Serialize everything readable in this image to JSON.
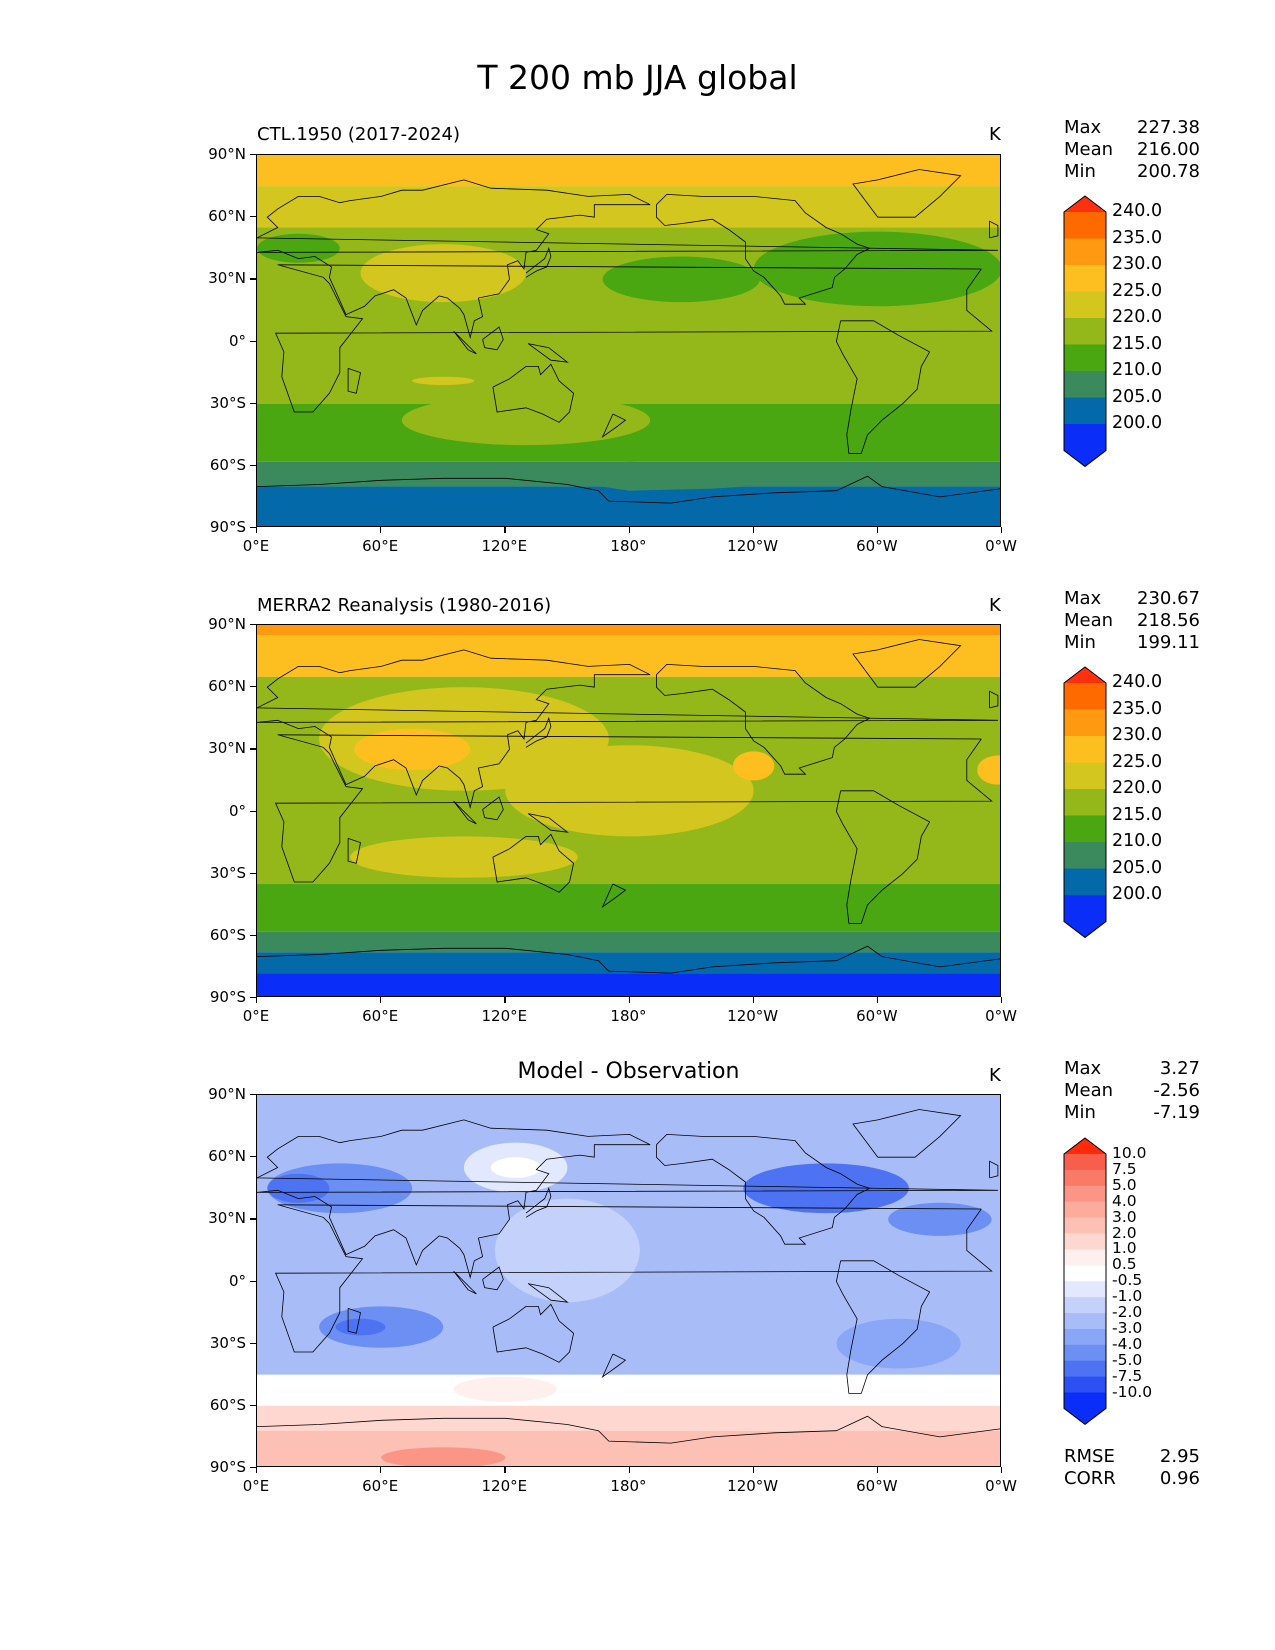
{
  "page_title": "T 200 mb JJA global",
  "axes": {
    "y_ticks": [
      "90°N",
      "60°N",
      "30°N",
      "0°",
      "30°S",
      "60°S",
      "90°S"
    ],
    "x_ticks": [
      "0°E",
      "60°E",
      "120°E",
      "180°",
      "120°W",
      "60°W",
      "0°W"
    ]
  },
  "panels": [
    {
      "title": "CTL.1950 (2017-2024)",
      "units": "K",
      "stats": [
        {
          "label": "Max",
          "value": "227.38"
        },
        {
          "label": "Mean",
          "value": "216.00"
        },
        {
          "label": "Min",
          "value": "200.78"
        }
      ]
    },
    {
      "title": "MERRA2 Reanalysis (1980-2016)",
      "units": "K",
      "stats": [
        {
          "label": "Max",
          "value": "230.67"
        },
        {
          "label": "Mean",
          "value": "218.56"
        },
        {
          "label": "Min",
          "value": "199.11"
        }
      ]
    },
    {
      "title": "Model - Observation",
      "units": "K",
      "stats": [
        {
          "label": "Max",
          "value": "3.27"
        },
        {
          "label": "Mean",
          "value": "-2.56"
        },
        {
          "label": "Min",
          "value": "-7.19"
        }
      ],
      "footer_stats": [
        {
          "label": "RMSE",
          "value": "2.95"
        },
        {
          "label": "CORR",
          "value": "0.96"
        }
      ]
    }
  ],
  "colorbars": {
    "absolute": {
      "levels": [
        "240.0",
        "235.0",
        "230.0",
        "225.0",
        "220.0",
        "215.0",
        "210.0",
        "205.0",
        "200.0"
      ],
      "colors": [
        "#ff3010",
        "#ff6a00",
        "#ff9a10",
        "#fdbf1f",
        "#d2c61f",
        "#94b81a",
        "#4aa611",
        "#3a8a5e",
        "#0469a8",
        "#0a2df8"
      ]
    },
    "difference": {
      "levels": [
        "10.0",
        "7.5",
        "5.0",
        "4.0",
        "3.0",
        "2.0",
        "1.0",
        "0.5",
        "-0.5",
        "-1.0",
        "-2.0",
        "-3.0",
        "-4.0",
        "-5.0",
        "-7.5",
        "-10.0"
      ],
      "colors": [
        "#ff2a0a",
        "#f85e4c",
        "#fa7a68",
        "#fb9686",
        "#fcab9c",
        "#fdc0b4",
        "#fed8d0",
        "#fff0ed",
        "#ffffff",
        "#e2e9ff",
        "#c4d2fb",
        "#a8bcf8",
        "#8aa6f6",
        "#6c8ff4",
        "#4d73f2",
        "#2c50f4",
        "#0a2df8"
      ]
    }
  },
  "chart_data": [
    {
      "type": "heatmap",
      "title": "CTL.1950 (2017-2024)",
      "units": "K",
      "x_ticks": [
        "0°E",
        "60°E",
        "120°E",
        "180°",
        "120°W",
        "60°W",
        "0°W"
      ],
      "y_ticks": [
        "90°N",
        "60°N",
        "30°N",
        "0°",
        "30°S",
        "60°S",
        "90°S"
      ],
      "colorbar_levels": [
        200.0,
        205.0,
        210.0,
        215.0,
        220.0,
        225.0,
        230.0,
        235.0,
        240.0
      ],
      "stats": {
        "max": 227.38,
        "mean": 216.0,
        "min": 200.78
      },
      "zonal_bands_approx": [
        {
          "lat_range": [
            75,
            90
          ],
          "value": 226
        },
        {
          "lat_range": [
            55,
            75
          ],
          "value": 222
        },
        {
          "lat_range": [
            -30,
            55
          ],
          "value": 217
        },
        {
          "lat_range": [
            -58,
            -30
          ],
          "value": 213
        },
        {
          "lat_range": [
            -70,
            -58
          ],
          "value": 208
        },
        {
          "lat_range": [
            -90,
            -70
          ],
          "value": 204
        }
      ]
    },
    {
      "type": "heatmap",
      "title": "MERRA2 Reanalysis (1980-2016)",
      "units": "K",
      "x_ticks": [
        "0°E",
        "60°E",
        "120°E",
        "180°",
        "120°W",
        "60°W",
        "0°W"
      ],
      "y_ticks": [
        "90°N",
        "60°N",
        "30°N",
        "0°",
        "30°S",
        "60°S",
        "90°S"
      ],
      "colorbar_levels": [
        200.0,
        205.0,
        210.0,
        215.0,
        220.0,
        225.0,
        230.0,
        235.0,
        240.0
      ],
      "stats": {
        "max": 230.67,
        "mean": 218.56,
        "min": 199.11
      },
      "zonal_bands_approx": [
        {
          "lat_range": [
            85,
            90
          ],
          "value": 231
        },
        {
          "lat_range": [
            65,
            85
          ],
          "value": 227
        },
        {
          "lat_range": [
            -35,
            65
          ],
          "value": 219
        },
        {
          "lat_range": [
            -58,
            -35
          ],
          "value": 214
        },
        {
          "lat_range": [
            -68,
            -58
          ],
          "value": 209
        },
        {
          "lat_range": [
            -78,
            -68
          ],
          "value": 204
        },
        {
          "lat_range": [
            -90,
            -78
          ],
          "value": 199
        }
      ]
    },
    {
      "type": "heatmap",
      "title": "Model - Observation",
      "units": "K",
      "x_ticks": [
        "0°E",
        "60°E",
        "120°E",
        "180°",
        "120°W",
        "60°W",
        "0°W"
      ],
      "y_ticks": [
        "90°N",
        "60°N",
        "30°N",
        "0°",
        "30°S",
        "60°S",
        "90°S"
      ],
      "colorbar_levels": [
        -10.0,
        -7.5,
        -5.0,
        -4.0,
        -3.0,
        -2.0,
        -1.0,
        -0.5,
        0.5,
        1.0,
        2.0,
        3.0,
        4.0,
        5.0,
        7.5,
        10.0
      ],
      "stats": {
        "max": 3.27,
        "mean": -2.56,
        "min": -7.19,
        "rmse": 2.95,
        "corr": 0.96
      },
      "zonal_bands_approx": [
        {
          "lat_range": [
            60,
            90
          ],
          "value": -3
        },
        {
          "lat_range": [
            -45,
            60
          ],
          "value": -3
        },
        {
          "lat_range": [
            -60,
            -45
          ],
          "value": 0
        },
        {
          "lat_range": [
            -75,
            -60
          ],
          "value": 1
        },
        {
          "lat_range": [
            -90,
            -75
          ],
          "value": 2.5
        }
      ]
    }
  ]
}
